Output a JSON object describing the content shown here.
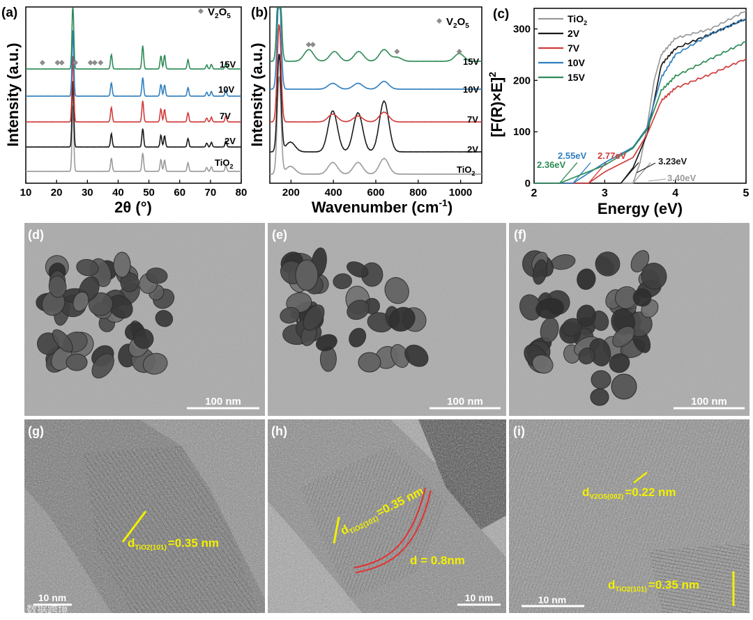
{
  "panels": {
    "a": {
      "letter": "(a)",
      "xlabel": "2θ (°)",
      "ylabel": "Intensity (a.u.)",
      "legend_label": "V",
      "legend_sub": "2",
      "legend_label2": "O",
      "legend_sub2": "5",
      "xticks": [
        "10",
        "20",
        "30",
        "40",
        "50",
        "60",
        "70",
        "80"
      ],
      "curve_labels": [
        "15V",
        "10V",
        "7V",
        "2V",
        "TiO"
      ],
      "tio2_sub": "2"
    },
    "b": {
      "letter": "(b)",
      "xlabel": "Wavenumber (cm",
      "xlabel_sup": "-1",
      "xlabel_end": ")",
      "ylabel": "Intensity (a.u.)",
      "xticks": [
        "200",
        "400",
        "600",
        "800",
        "1000"
      ],
      "curve_labels": [
        "15V",
        "10V",
        "7V",
        "2V",
        "TiO"
      ],
      "tio2_sub": "2"
    },
    "c": {
      "letter": "(c)",
      "xlabel": "Energy (eV)",
      "ylabel": "[F(R)×E]",
      "ylabel_sup": "2",
      "xticks": [
        "2",
        "3",
        "4",
        "5"
      ],
      "yticks": [
        "0",
        "100",
        "200",
        "300"
      ],
      "legend": [
        "TiO2",
        "2V",
        "7V",
        "10V",
        "15V"
      ],
      "annotations": [
        "2.36eV",
        "2.55eV",
        "2.77eV",
        "3.23eV",
        "3.40eV"
      ]
    },
    "d": {
      "letter": "(d)",
      "scale": "100 nm"
    },
    "e": {
      "letter": "(e)",
      "scale": "100 nm"
    },
    "f": {
      "letter": "(f)",
      "scale": "100 nm"
    },
    "g": {
      "letter": "(g)",
      "scale": "10 nm",
      "d_label": "d",
      "d_sub": "TiO2(101)",
      "d_value": "=0.35 nm"
    },
    "h": {
      "letter": "(h)",
      "scale": "10 nm",
      "d_label": "d",
      "d_sub": "TiO2(101)",
      "d_value": "=0.35 nm",
      "d2": "d = 0.8nm"
    },
    "i": {
      "letter": "(i)",
      "scale": "10 nm",
      "d_label": "d",
      "d_sub": "V2O5(002)",
      "d_value": "=0.22 nm",
      "d2_label": "d",
      "d2_sub": "TiO2(101)",
      "d2_value": "=0.35 nm"
    }
  },
  "watermark": "人人数据跨境",
  "colors": {
    "tio2": "#9a9a9a",
    "v2": "#1a1a1a",
    "v7": "#d23b3b",
    "v10": "#2f7fbf",
    "v15": "#2e8b57",
    "marker": "#8c8c8c",
    "yellow": "#f3f000",
    "red": "#e53030"
  },
  "chart_data": [
    {
      "type": "line",
      "title": "",
      "xlabel": "2θ (°)",
      "ylabel": "Intensity (a.u.)",
      "xlim": [
        10,
        80
      ],
      "series": [
        {
          "name": "TiO2",
          "x": [
            25.3,
            37.8,
            48.0,
            53.9,
            55.1,
            62.7,
            68.8,
            70.3,
            75.0
          ],
          "y": [
            100,
            20,
            28,
            18,
            17,
            13,
            6,
            7,
            9
          ]
        },
        {
          "name": "2V",
          "x": [
            25.3,
            37.8,
            48.0,
            53.9,
            55.1,
            62.7,
            68.8,
            70.3,
            75.0
          ],
          "y": [
            100,
            20,
            28,
            18,
            17,
            13,
            6,
            7,
            9
          ]
        },
        {
          "name": "7V",
          "x": [
            25.3,
            37.8,
            48.0,
            53.9,
            55.1,
            62.7,
            68.8,
            70.3,
            75.0
          ],
          "y": [
            100,
            22,
            32,
            20,
            19,
            14,
            6,
            7,
            9
          ]
        },
        {
          "name": "10V",
          "x": [
            25.3,
            37.8,
            48.0,
            53.9,
            55.1,
            62.7,
            68.8,
            70.3,
            75.0
          ],
          "y": [
            100,
            20,
            28,
            18,
            17,
            13,
            6,
            7,
            9
          ]
        },
        {
          "name": "15V",
          "x": [
            25.3,
            37.8,
            48.0,
            53.9,
            55.1,
            62.7,
            68.8,
            70.3,
            75.0
          ],
          "y": [
            100,
            22,
            35,
            20,
            21,
            14,
            6,
            7,
            9
          ]
        }
      ],
      "markers_x": [
        15.4,
        20.3,
        21.7,
        26.1,
        31.0,
        32.4,
        34.3
      ]
    },
    {
      "type": "line",
      "title": "",
      "xlabel": "Wavenumber (cm-1)",
      "ylabel": "Intensity (a.u.)",
      "xlim": [
        100,
        1100
      ],
      "series": [
        {
          "name": "TiO2",
          "x": [
            144,
            197,
            397,
            516,
            639
          ],
          "y": [
            100,
            8,
            12,
            12,
            16
          ]
        },
        {
          "name": "2V",
          "x": [
            144,
            197,
            397,
            516,
            639
          ],
          "y": [
            100,
            10,
            42,
            40,
            52
          ]
        },
        {
          "name": "7V",
          "x": [
            144,
            397,
            516,
            639
          ],
          "y": [
            100,
            8,
            6,
            10
          ]
        },
        {
          "name": "10V",
          "x": [
            144,
            397,
            516,
            639
          ],
          "y": [
            100,
            6,
            6,
            8
          ]
        },
        {
          "name": "15V",
          "x": [
            144,
            284,
            405,
            520,
            639,
            700,
            994
          ],
          "y": [
            100,
            12,
            10,
            10,
            12,
            4,
            8
          ]
        }
      ],
      "markers_x": [
        283,
        303,
        700,
        994
      ]
    },
    {
      "type": "line",
      "title": "",
      "xlabel": "Energy (eV)",
      "ylabel": "[F(R)×E]2",
      "xlim": [
        2,
        5
      ],
      "ylim": [
        0,
        340
      ],
      "series": [
        {
          "name": "TiO2",
          "x": [
            3.4,
            3.5,
            3.6,
            3.7,
            3.8,
            4.0,
            4.5,
            5.0
          ],
          "y": [
            0,
            40,
            110,
            200,
            250,
            282,
            300,
            335
          ]
        },
        {
          "name": "2V",
          "x": [
            3.23,
            3.4,
            3.6,
            3.7,
            3.8,
            4.0,
            4.5,
            5.0
          ],
          "y": [
            0,
            30,
            95,
            160,
            230,
            262,
            290,
            320
          ]
        },
        {
          "name": "7V",
          "x": [
            2.77,
            3.0,
            3.4,
            3.6,
            3.8,
            4.0,
            4.5,
            5.0
          ],
          "y": [
            0,
            22,
            50,
            95,
            160,
            185,
            212,
            242
          ]
        },
        {
          "name": "10V",
          "x": [
            2.55,
            3.0,
            3.4,
            3.6,
            3.8,
            4.0,
            4.5,
            5.0
          ],
          "y": [
            0,
            40,
            70,
            108,
            205,
            250,
            290,
            320
          ]
        },
        {
          "name": "15V",
          "x": [
            2.36,
            3.0,
            3.4,
            3.6,
            3.8,
            4.0,
            4.5,
            5.0
          ],
          "y": [
            0,
            35,
            68,
            105,
            180,
            208,
            242,
            275
          ]
        }
      ]
    }
  ]
}
